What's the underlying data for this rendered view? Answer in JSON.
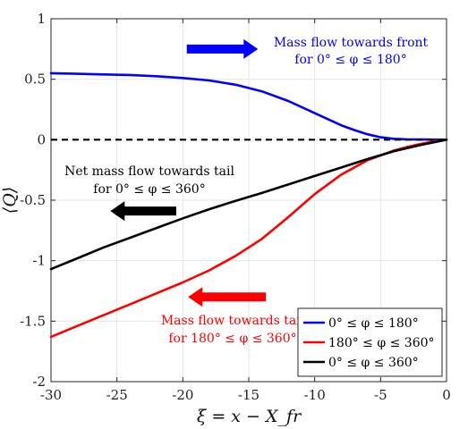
{
  "chart_data": {
    "type": "line",
    "xlabel": "ξ = x − X_fr",
    "ylabel": "⟨Q⟩",
    "xlim": [
      -30,
      0
    ],
    "ylim": [
      -2,
      1
    ],
    "xticks": [
      -30,
      -25,
      -20,
      -15,
      -10,
      -5,
      0
    ],
    "yticks": [
      -2,
      -1.5,
      -1,
      -0.5,
      0,
      0.5,
      1
    ],
    "xtick_labels": [
      "-30",
      "-25",
      "-20",
      "-15",
      "-10",
      "-5",
      "0"
    ],
    "ytick_labels": [
      "-2",
      "-1.5",
      "-1",
      "-0.5",
      "0",
      "0.5",
      "1"
    ],
    "grid": true,
    "legend_position": "bottom-right",
    "series": [
      {
        "name": "0° ≤ φ ≤ 180°",
        "color": "#0000ff",
        "x": [
          -30,
          -28,
          -26,
          -24,
          -22,
          -20,
          -18,
          -16,
          -14,
          -12,
          -10,
          -9,
          -8,
          -7,
          -6,
          -5,
          -4,
          -3,
          -2,
          -1,
          0
        ],
        "y": [
          0.55,
          0.545,
          0.54,
          0.535,
          0.525,
          0.51,
          0.49,
          0.455,
          0.4,
          0.32,
          0.22,
          0.17,
          0.12,
          0.08,
          0.045,
          0.02,
          0.008,
          0.003,
          0.002,
          0.001,
          0.0
        ]
      },
      {
        "name": "180° ≤ φ ≤ 360°",
        "color": "#ff0000",
        "x": [
          -30,
          -28,
          -26,
          -24,
          -22,
          -20,
          -18,
          -16,
          -14,
          -12,
          -10,
          -8,
          -6,
          -4,
          -3,
          -2,
          -1,
          0
        ],
        "y": [
          -1.63,
          -1.54,
          -1.45,
          -1.36,
          -1.27,
          -1.18,
          -1.08,
          -0.96,
          -0.82,
          -0.64,
          -0.45,
          -0.29,
          -0.17,
          -0.09,
          -0.06,
          -0.035,
          -0.015,
          0.0
        ]
      },
      {
        "name": "0° ≤ φ ≤ 360°",
        "color": "#000000",
        "x": [
          -30,
          -28,
          -26,
          -24,
          -22,
          -20,
          -18,
          -16,
          -14,
          -12,
          -10,
          -8,
          -6,
          -4,
          -2,
          0
        ],
        "y": [
          -1.07,
          -0.98,
          -0.89,
          -0.81,
          -0.73,
          -0.65,
          -0.575,
          -0.505,
          -0.44,
          -0.37,
          -0.3,
          -0.23,
          -0.16,
          -0.095,
          -0.045,
          0.0
        ]
      },
      {
        "name": "",
        "color": "#000000",
        "dashed": true,
        "x": [
          -30,
          0
        ],
        "y": [
          0,
          0
        ]
      }
    ],
    "annotations": [
      {
        "line1": "Mass flow towards front",
        "line2": "for 0° ≤ φ ≤ 180°",
        "color": "#0000ff",
        "arrow": "right",
        "arrow_x": [
          -19.7,
          -14.3
        ],
        "arrow_y": 0.75
      },
      {
        "line1": "Net mass flow towards tail",
        "line2": "for 0° ≤ φ ≤ 360°",
        "color": "#000000",
        "arrow": "left",
        "arrow_x": [
          -25.5,
          -20.5
        ],
        "arrow_y": -0.59
      },
      {
        "line1": "Mass flow towards tail",
        "line2": "for 180° ≤ φ ≤ 360°",
        "color": "#ff0000",
        "arrow": "left",
        "arrow_x": [
          -19.6,
          -13.7
        ],
        "arrow_y": -1.3
      }
    ]
  }
}
